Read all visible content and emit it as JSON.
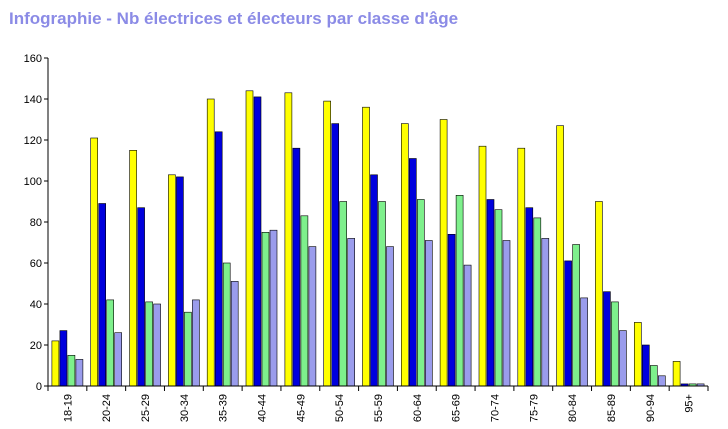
{
  "chart_data": {
    "type": "bar",
    "title": "Infographie - Nb électrices et électeurs par classe d'âge",
    "xlabel": "",
    "ylabel": "",
    "ylim": [
      0,
      160
    ],
    "yticks": [
      0,
      20,
      40,
      60,
      80,
      100,
      120,
      140,
      160
    ],
    "grid": false,
    "legend": "none",
    "categories": [
      "18-19",
      "20-24",
      "25-29",
      "30-34",
      "35-39",
      "40-44",
      "45-49",
      "50-54",
      "55-59",
      "60-64",
      "65-69",
      "70-74",
      "75-79",
      "80-84",
      "85-89",
      "90-94",
      "95+"
    ],
    "series": [
      {
        "color": "#ffff00",
        "values": [
          22,
          121,
          115,
          103,
          140,
          144,
          143,
          139,
          136,
          128,
          130,
          117,
          116,
          127,
          90,
          31,
          12
        ]
      },
      {
        "color": "#0000dd",
        "values": [
          27,
          89,
          87,
          102,
          124,
          141,
          116,
          128,
          103,
          111,
          74,
          91,
          87,
          61,
          46,
          20,
          1
        ]
      },
      {
        "color": "#7ef08c",
        "values": [
          15,
          42,
          41,
          36,
          60,
          75,
          83,
          90,
          90,
          91,
          93,
          86,
          82,
          69,
          41,
          10,
          1
        ]
      },
      {
        "color": "#9a9cec",
        "values": [
          13,
          26,
          40,
          42,
          51,
          76,
          68,
          72,
          68,
          71,
          59,
          71,
          72,
          43,
          27,
          5,
          1
        ]
      }
    ]
  }
}
